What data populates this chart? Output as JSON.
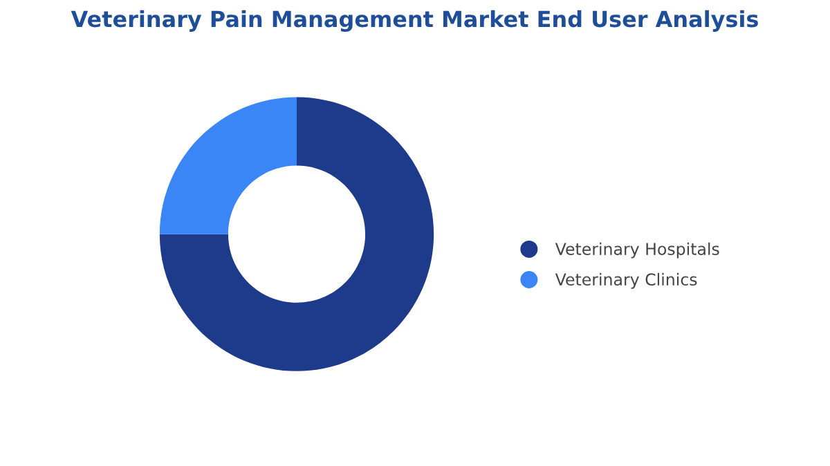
{
  "chart_data": {
    "type": "donut",
    "title": "Veterinary Pain Management Market End User Analysis",
    "categories": [
      "Veterinary Hospitals",
      "Veterinary Clinics"
    ],
    "values": [
      75,
      25
    ],
    "colors": [
      "#1e3a8a",
      "#3b86f7"
    ],
    "legend": "right"
  }
}
